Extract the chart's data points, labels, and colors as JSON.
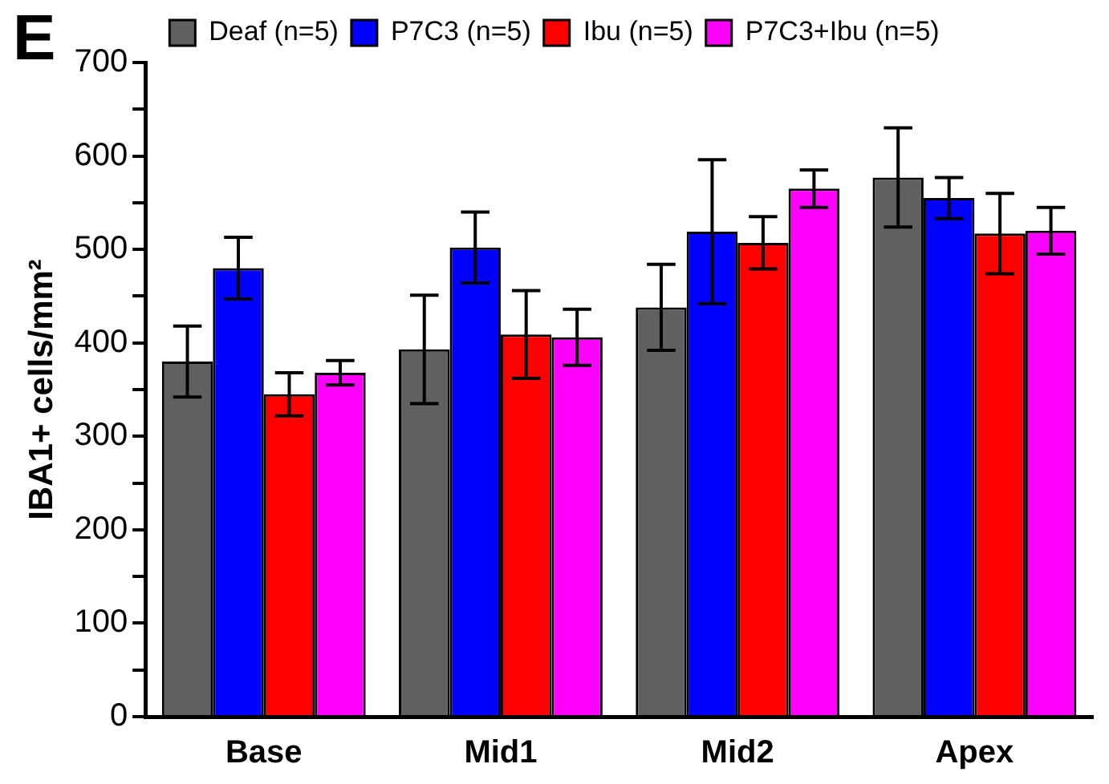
{
  "chart_data": {
    "type": "bar",
    "ylabel": "IBA1+ cells/mm²",
    "annotations": [
      "E"
    ],
    "categories": [
      "Base",
      "Mid1",
      "Mid2",
      "Apex"
    ],
    "series": [
      {
        "name": "Deaf (n=5)",
        "color": "#606060",
        "values": [
          380,
          393,
          438,
          577
        ],
        "errors": [
          38,
          58,
          46,
          53
        ]
      },
      {
        "name": "P7C3 (n=5)",
        "color": "#0000ff",
        "values": [
          480,
          502,
          519,
          555
        ],
        "errors": [
          33,
          38,
          77,
          22
        ]
      },
      {
        "name": "Ibu (n=5)",
        "color": "#ff0000",
        "values": [
          345,
          409,
          507,
          517
        ],
        "errors": [
          23,
          47,
          28,
          43
        ]
      },
      {
        "name": "P7C3+Ibu (n=5)",
        "color": "#ff00ff",
        "values": [
          368,
          406,
          565,
          520
        ],
        "errors": [
          13,
          30,
          20,
          25
        ]
      }
    ],
    "ylim": [
      0,
      700
    ],
    "yticks": [
      0,
      {
        "value": 50,
        "label": null
      },
      100,
      {
        "value": 150,
        "label": null
      },
      200,
      {
        "value": 250,
        "label": null
      },
      300,
      {
        "value": 350,
        "label": null
      },
      400,
      {
        "value": 450,
        "label": null
      },
      500,
      {
        "value": 550,
        "label": null
      },
      600,
      {
        "value": 650,
        "label": null
      },
      700
    ],
    "grid": false,
    "legend": "top"
  }
}
